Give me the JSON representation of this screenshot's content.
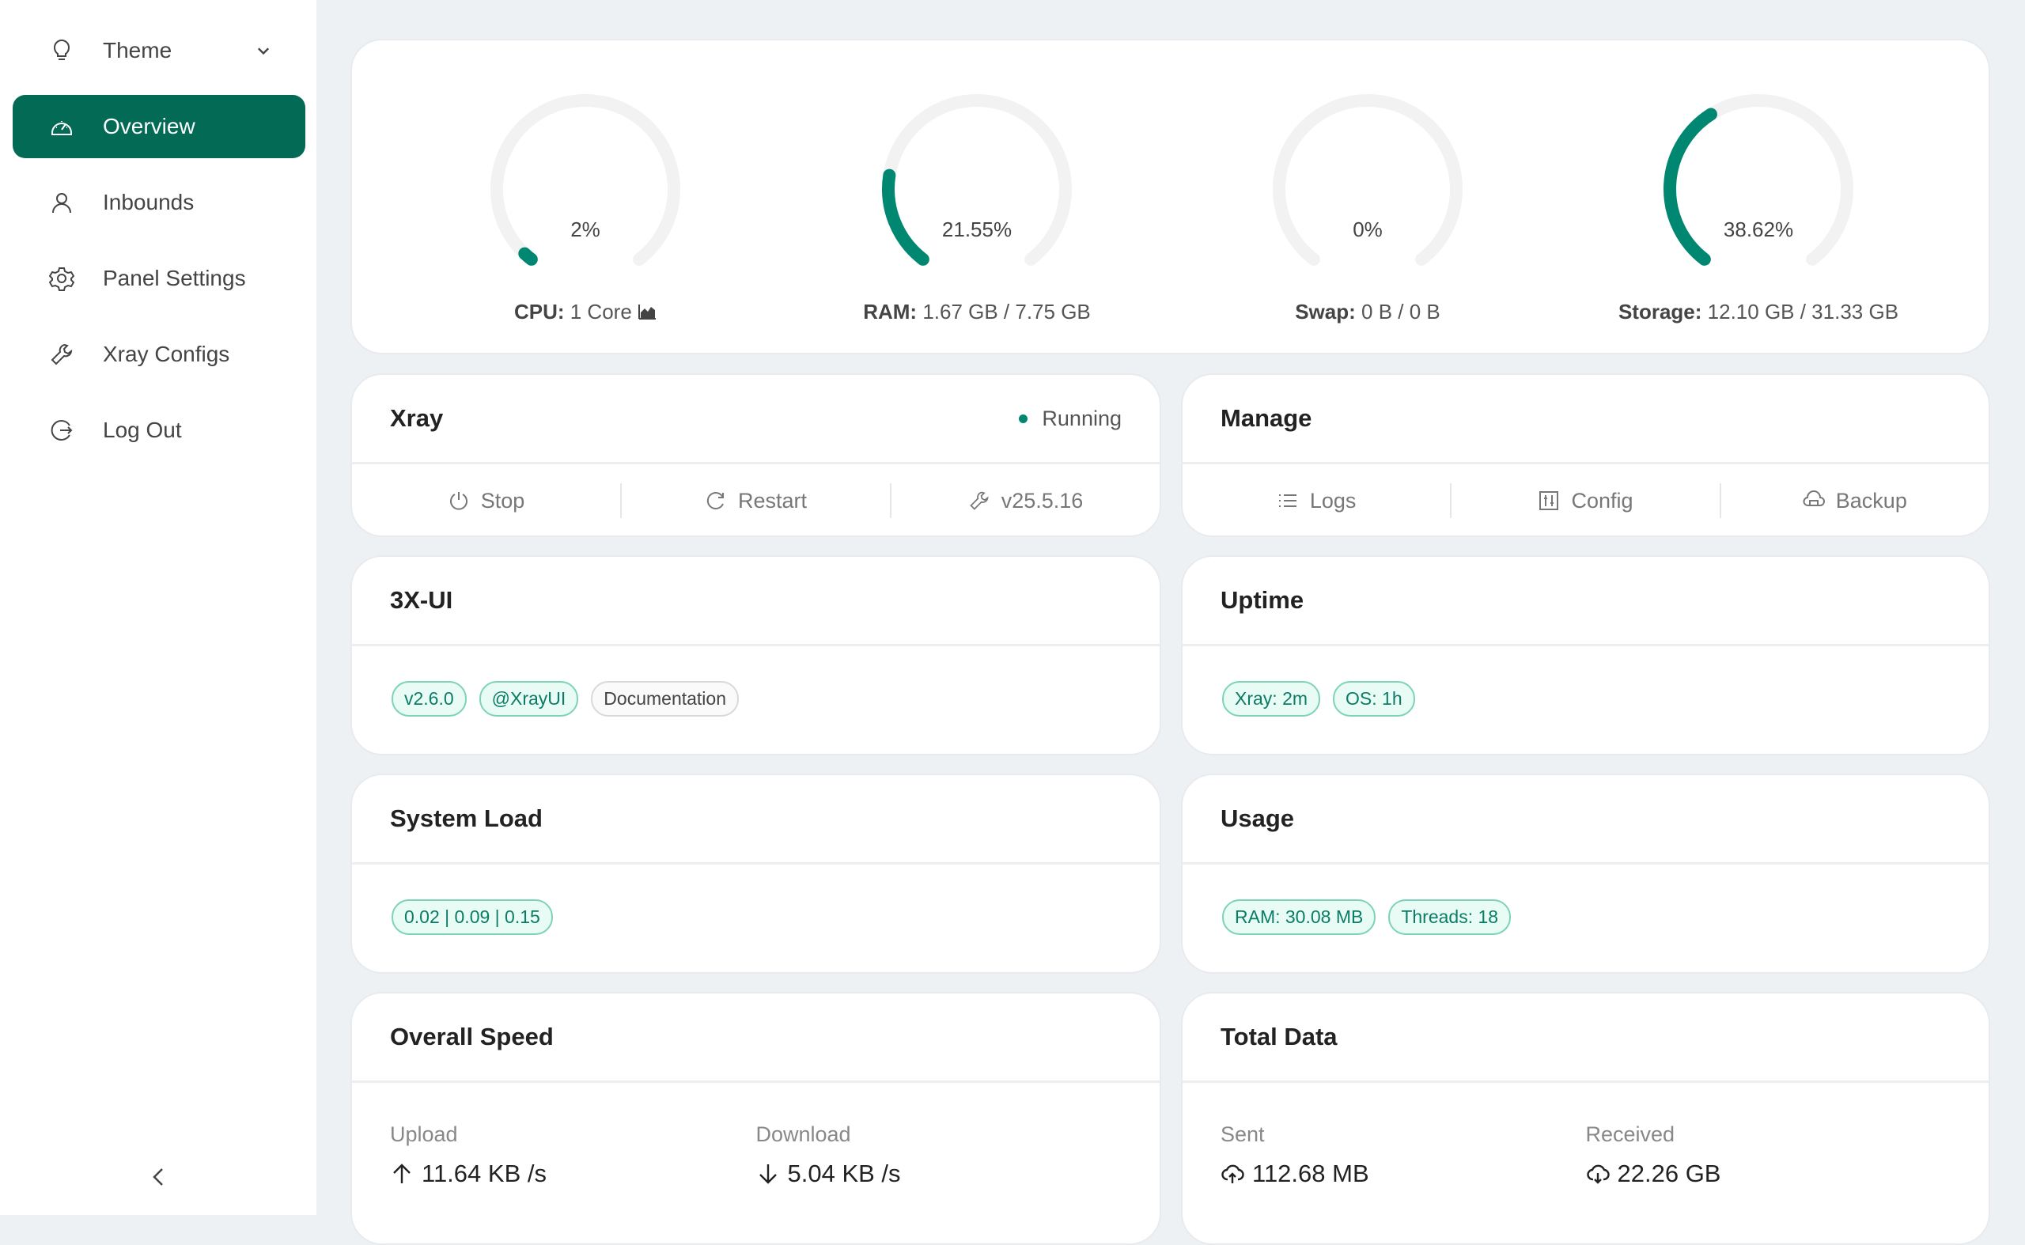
{
  "colors": {
    "accent": "#036a55",
    "gauge": "#008771",
    "track": "#f2f2f2"
  },
  "sidebar": {
    "items": [
      {
        "label": "Theme",
        "icon": "bulb-icon"
      },
      {
        "label": "Overview",
        "icon": "dashboard-icon",
        "active": true
      },
      {
        "label": "Inbounds",
        "icon": "user-icon"
      },
      {
        "label": "Panel Settings",
        "icon": "gear-icon"
      },
      {
        "label": "Xray Configs",
        "icon": "wrench-icon"
      },
      {
        "label": "Log Out",
        "icon": "logout-icon"
      }
    ]
  },
  "gauges": [
    {
      "percent": 2,
      "text": "2%",
      "label": "CPU:",
      "value": "1 Core"
    },
    {
      "percent": 21.55,
      "text": "21.55%",
      "label": "RAM:",
      "value": "1.67 GB / 7.75 GB"
    },
    {
      "percent": 0,
      "text": "0%",
      "label": "Swap:",
      "value": "0 B / 0 B"
    },
    {
      "percent": 38.62,
      "text": "38.62%",
      "label": "Storage:",
      "value": "12.10 GB / 31.33 GB"
    }
  ],
  "xray": {
    "title": "Xray",
    "status": "Running",
    "actions": [
      "Stop",
      "Restart",
      "v25.5.16"
    ]
  },
  "manage": {
    "title": "Manage",
    "actions": [
      "Logs",
      "Config",
      "Backup"
    ]
  },
  "panel": {
    "title": "3X-UI",
    "tags": [
      "v2.6.0",
      "@XrayUI",
      "Documentation"
    ]
  },
  "uptime": {
    "title": "Uptime",
    "tags": [
      "Xray: 2m",
      "OS: 1h"
    ]
  },
  "load": {
    "title": "System Load",
    "tags": [
      "0.02 | 0.09 | 0.15"
    ]
  },
  "usage": {
    "title": "Usage",
    "tags": [
      "RAM: 30.08 MB",
      "Threads: 18"
    ]
  },
  "speed": {
    "title": "Overall Speed",
    "upload_label": "Upload",
    "upload": "11.64 KB /s",
    "download_label": "Download",
    "download": "5.04 KB /s"
  },
  "total": {
    "title": "Total Data",
    "sent_label": "Sent",
    "sent": "112.68 MB",
    "received_label": "Received",
    "received": "22.26 GB"
  }
}
